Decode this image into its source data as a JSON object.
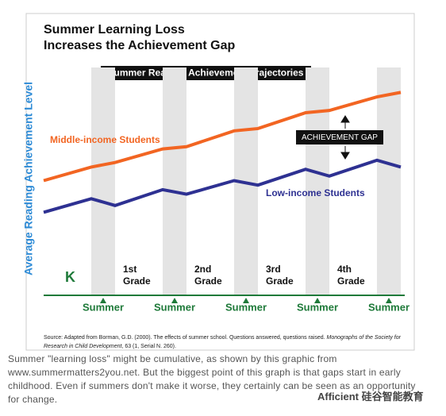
{
  "chart_data": {
    "type": "line",
    "title": [
      "Summer Learning Loss",
      "Increases the Achievement Gap"
    ],
    "subtitle": "Summer Reading Achievement Trajectories",
    "y_label": "Average Reading Achievement Level",
    "categories": [
      null,
      null,
      null,
      null,
      null,
      null,
      null,
      null,
      null,
      null,
      null
    ],
    "series": [
      {
        "name": "Middle-income Students",
        "color": "#f26522",
        "values": [
          50,
          56,
          58,
          64,
          65,
          72,
          73,
          80,
          81,
          87,
          89
        ]
      },
      {
        "name": "Low-income Students",
        "color": "#2e3192",
        "values": [
          36,
          42,
          39,
          46,
          44,
          50,
          48,
          55,
          52,
          59,
          56
        ]
      }
    ],
    "ylim": [
      0,
      100
    ],
    "grades": [
      [
        "K"
      ],
      [
        "1st",
        "Grade"
      ],
      [
        "2nd",
        "Grade"
      ],
      [
        "3rd",
        "Grade"
      ],
      [
        "4th",
        "Grade"
      ]
    ],
    "summer_label": [
      "Summer",
      "Summer",
      "Summer",
      "Summer",
      "Summer"
    ],
    "annotation": "ACHIEVEMENT GAP",
    "source": [
      "Source: Adapted from Borman, G.D. (2000). The effects of summer school. Questions answered, questions raised.",
      "Monographs of the Society for",
      "Research in Child Development",
      ", 63 (1, Serial N. 260)."
    ]
  },
  "caption": "Summer \"learning loss\" might be cumulative, as shown by this graphic from www.summermatters2you.net. But the biggest point of this graph is that gaps start in early childhood. Even if summers don't make it worse, they certainly can be seen as an opportunity for change.",
  "watermark": "Afficient 硅谷智能教育"
}
